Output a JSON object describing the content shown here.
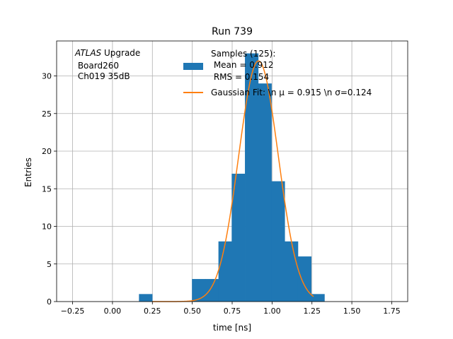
{
  "chart_data": {
    "type": "bar",
    "title": "Run 739",
    "xlabel": "time [ns]",
    "ylabel": "Entries",
    "xlim": [
      -0.35,
      1.85
    ],
    "ylim": [
      0,
      34.65
    ],
    "xticks": [
      -0.25,
      0.0,
      0.25,
      0.5,
      0.75,
      1.0,
      1.25,
      1.5,
      1.75
    ],
    "xtick_labels": [
      "−0.25",
      "0.00",
      "0.25",
      "0.50",
      "0.75",
      "1.00",
      "1.25",
      "1.50",
      "1.75"
    ],
    "yticks": [
      0,
      5,
      10,
      15,
      20,
      25,
      30
    ],
    "ytick_labels": [
      "0",
      "5",
      "10",
      "15",
      "20",
      "25",
      "30"
    ],
    "grid": true,
    "annotation": {
      "line1_italic": "ATLAS",
      "line1_rest": " Upgrade",
      "line2": " Board260",
      "line3": " Ch019 35dB"
    },
    "legend": {
      "placement": "top-right",
      "hist_label_lines": [
        "Samples (125):",
        " Mean = 0.912",
        " RMS = 0.154"
      ],
      "fit_label": "Gaussian Fit: \\n μ = 0.915 \\n σ=0.124"
    },
    "histogram": {
      "bin_edges": [
        0.166,
        0.249,
        0.332,
        0.415,
        0.498,
        0.581,
        0.664,
        0.747,
        0.83,
        0.913,
        0.996,
        1.079,
        1.162,
        1.245,
        1.328
      ],
      "counts": [
        1,
        0,
        0,
        0,
        3,
        3,
        8,
        17,
        33,
        29,
        16,
        8,
        6,
        1
      ],
      "color": "#1f77b4"
    },
    "fit": {
      "type": "gaussian",
      "mu": 0.915,
      "sigma": 0.124,
      "amplitude": 32,
      "x_range": [
        0.25,
        1.26
      ],
      "color": "#ff7f0e"
    }
  }
}
